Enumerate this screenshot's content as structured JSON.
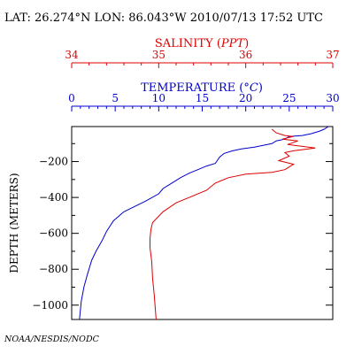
{
  "header": {
    "text": "LAT: 26.274°N LON: 86.043°W 2010/07/13 17:52 UTC"
  },
  "credit": "NOAA/NESDIS/NODC",
  "colors": {
    "temperature": "#0000cc",
    "salinity": "#dd0000",
    "axis": "#000000"
  },
  "chart_data": {
    "type": "line",
    "ylabel": "DEPTH (METERS)",
    "ylim": [
      -1080,
      -5
    ],
    "yticks": [
      -200,
      -400,
      -600,
      -800,
      -1000
    ],
    "grid": false,
    "axes": {
      "salinity": {
        "label_main": "SALINITY (",
        "label_unit": "PPT",
        "label_end": ")",
        "xlim": [
          34,
          37
        ],
        "ticks": [
          34,
          35,
          36,
          37
        ]
      },
      "temperature": {
        "label_main": "TEMPERATURE (",
        "label_unit": "°C",
        "label_end": ")",
        "xlim": [
          0,
          30
        ],
        "ticks": [
          0,
          5,
          10,
          15,
          20,
          25,
          30
        ]
      }
    },
    "series": [
      {
        "axis": "temperature",
        "points": [
          [
            29.5,
            -5
          ],
          [
            29.0,
            -20
          ],
          [
            28.5,
            -30
          ],
          [
            27.5,
            -45
          ],
          [
            26.5,
            -55
          ],
          [
            25.0,
            -60
          ],
          [
            24.5,
            -75
          ],
          [
            23.5,
            -85
          ],
          [
            23.0,
            -100
          ],
          [
            22.0,
            -110
          ],
          [
            21.0,
            -120
          ],
          [
            19.5,
            -130
          ],
          [
            18.5,
            -140
          ],
          [
            17.5,
            -155
          ],
          [
            17.0,
            -175
          ],
          [
            16.5,
            -210
          ],
          [
            15.5,
            -225
          ],
          [
            14.5,
            -245
          ],
          [
            13.5,
            -265
          ],
          [
            12.5,
            -290
          ],
          [
            11.5,
            -320
          ],
          [
            10.5,
            -350
          ],
          [
            10.0,
            -380
          ],
          [
            8.5,
            -420
          ],
          [
            6.0,
            -480
          ],
          [
            4.8,
            -530
          ],
          [
            4.0,
            -590
          ],
          [
            3.5,
            -640
          ],
          [
            2.8,
            -700
          ],
          [
            2.3,
            -750
          ],
          [
            1.8,
            -830
          ],
          [
            1.4,
            -900
          ],
          [
            1.1,
            -980
          ],
          [
            0.9,
            -1080
          ]
        ]
      },
      {
        "axis": "salinity",
        "points": [
          [
            36.3,
            -20
          ],
          [
            36.35,
            -40
          ],
          [
            36.45,
            -55
          ],
          [
            36.55,
            -60
          ],
          [
            36.42,
            -75
          ],
          [
            36.6,
            -85
          ],
          [
            36.48,
            -105
          ],
          [
            36.8,
            -125
          ],
          [
            36.55,
            -140
          ],
          [
            36.45,
            -150
          ],
          [
            36.5,
            -170
          ],
          [
            36.38,
            -195
          ],
          [
            36.55,
            -215
          ],
          [
            36.45,
            -245
          ],
          [
            36.3,
            -260
          ],
          [
            36.0,
            -270
          ],
          [
            35.8,
            -290
          ],
          [
            35.65,
            -320
          ],
          [
            35.55,
            -360
          ],
          [
            35.4,
            -390
          ],
          [
            35.2,
            -430
          ],
          [
            35.05,
            -480
          ],
          [
            34.93,
            -540
          ],
          [
            34.91,
            -580
          ],
          [
            34.9,
            -630
          ],
          [
            34.9,
            -680
          ],
          [
            34.92,
            -760
          ],
          [
            34.93,
            -850
          ],
          [
            34.95,
            -950
          ],
          [
            34.97,
            -1080
          ]
        ]
      }
    ]
  }
}
